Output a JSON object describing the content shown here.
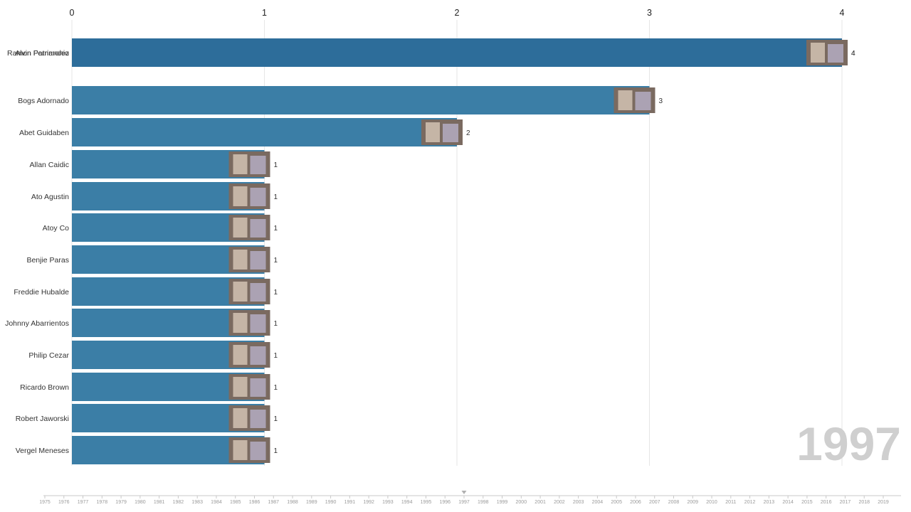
{
  "chart_data": {
    "type": "bar",
    "orientation": "horizontal",
    "current_year": "1997",
    "xlim": [
      0,
      4
    ],
    "x_ticks": [
      0,
      1,
      2,
      3,
      4
    ],
    "grid": true,
    "categories": [
      "Ramon Fernandez",
      "Alvin Patrimonio",
      "Bogs Adornado",
      "Abet Guidaben",
      "Allan Caidic",
      "Ato Agustin",
      "Atoy Co",
      "Benjie Paras",
      "Freddie Hubalde",
      "Johnny Abarrientos",
      "Philip Cezar",
      "Ricardo Brown",
      "Robert Jaworski",
      "Vergel Meneses"
    ],
    "values": [
      4,
      4,
      3,
      2,
      1,
      1,
      1,
      1,
      1,
      1,
      1,
      1,
      1,
      1
    ],
    "timeline_years": [
      "1975",
      "1976",
      "1977",
      "1978",
      "1979",
      "1980",
      "1981",
      "1982",
      "1983",
      "1984",
      "1985",
      "1986",
      "1987",
      "1988",
      "1989",
      "1990",
      "1991",
      "1992",
      "1993",
      "1994",
      "1995",
      "1996",
      "1997",
      "1998",
      "1999",
      "2000",
      "2001",
      "2002",
      "2003",
      "2004",
      "2005",
      "2006",
      "2007",
      "2008",
      "2009",
      "2010",
      "2011",
      "2012",
      "2013",
      "2014",
      "2015",
      "2016",
      "2017",
      "2018",
      "2019"
    ],
    "colors": {
      "bar": "#3b7ea6",
      "bar_top": "#2d6d9a",
      "grid": "#e6e6e6",
      "watermark": "#cfcfcf"
    }
  }
}
